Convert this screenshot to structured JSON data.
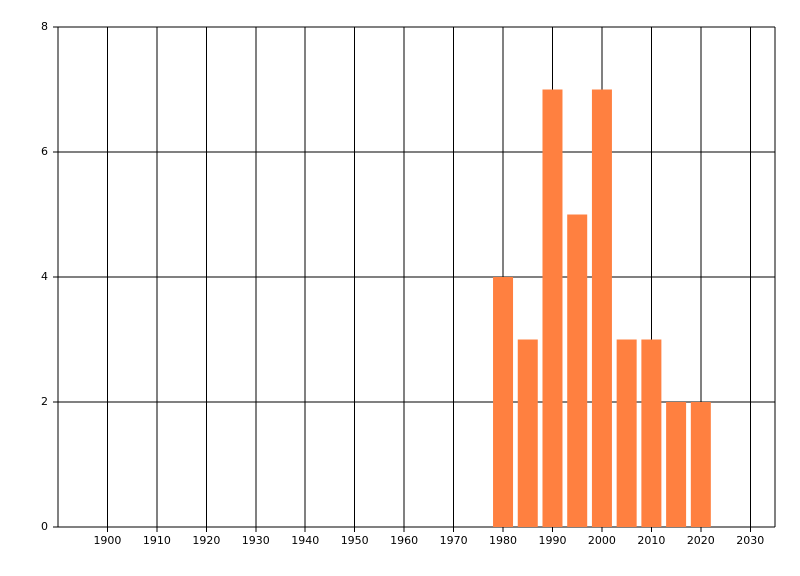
{
  "chart_data": {
    "type": "bar",
    "x": [
      1980,
      1985,
      1990,
      1995,
      2000,
      2005,
      2010,
      2015,
      2020
    ],
    "values": [
      4,
      3,
      7,
      5,
      7,
      3,
      3,
      2,
      2
    ],
    "color": "#ff8040",
    "xlim": [
      1890,
      2035
    ],
    "xticks": [
      1900,
      1910,
      1920,
      1930,
      1940,
      1950,
      1960,
      1970,
      1980,
      1990,
      2000,
      2010,
      2020,
      2030
    ],
    "ylim": [
      0,
      8
    ],
    "yticks": [
      0,
      2,
      4,
      6,
      8
    ],
    "grid": true
  }
}
